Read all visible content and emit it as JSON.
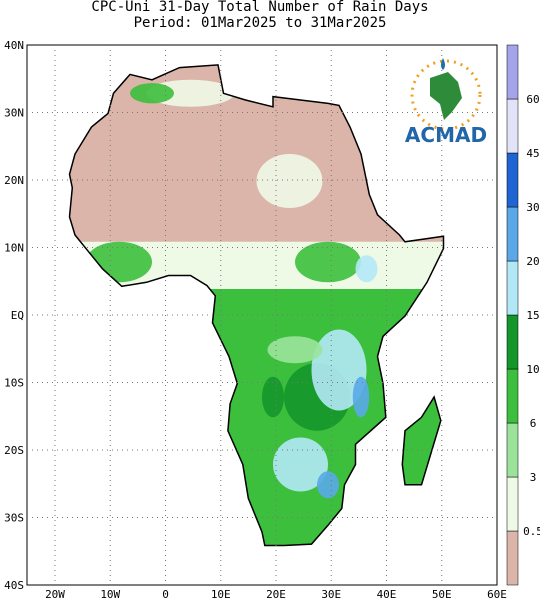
{
  "map": {
    "title": [
      "CPC-Uni 31-Day Total Number of Rain Days",
      "Period: 01Mar2025 to 31Mar2025"
    ],
    "lat_labels": [
      "40N",
      "30N",
      "20N",
      "10N",
      "EQ",
      "10S",
      "20S",
      "30S",
      "40S"
    ],
    "lon_labels": [
      "20W",
      "10W",
      "0",
      "10E",
      "20E",
      "30E",
      "40E",
      "50E",
      "60E"
    ],
    "logo": "ACMAD"
  },
  "colorbar": {
    "labels": [
      0.5,
      3,
      6,
      10,
      15,
      20,
      30,
      45,
      60
    ],
    "colors": [
      "#dcb5aa",
      "#eefae6",
      "#9be39b",
      "#3cbf3c",
      "#14962a",
      "#b2e8f6",
      "#5aa8e8",
      "#1e64d2",
      "#e2e2f8",
      "#a4a4ea",
      "#6a50d8"
    ]
  }
}
